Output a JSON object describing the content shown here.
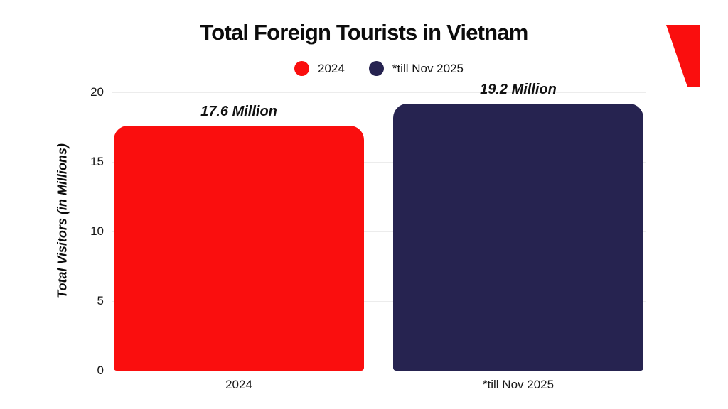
{
  "title": "Total Foreign Tourists in Vietnam",
  "chart_data": {
    "type": "bar",
    "title": "Total Foreign Tourists in Vietnam",
    "categories": [
      "2024",
      "*till Nov 2025"
    ],
    "values": [
      17.6,
      19.2
    ],
    "value_labels": [
      "17.6 Million",
      "19.2 Million"
    ],
    "bar_colors": [
      "#fa0e0e",
      "#262350"
    ],
    "legend": [
      "2024",
      "*till Nov 2025"
    ],
    "legend_position": "top-center",
    "xlabel": "",
    "ylabel": "Total Visitors (in Millions)",
    "ylim": [
      0,
      20
    ],
    "yticks": [
      0,
      5,
      10,
      15,
      20
    ],
    "grid": true
  },
  "logo": {
    "name": "red-corner-mark",
    "color": "#fa0e0e"
  },
  "colors": {
    "background": "#ffffff",
    "text": "#0d0d0d",
    "gridline": "#ececec",
    "red": "#fa0e0e",
    "navy": "#262350"
  }
}
